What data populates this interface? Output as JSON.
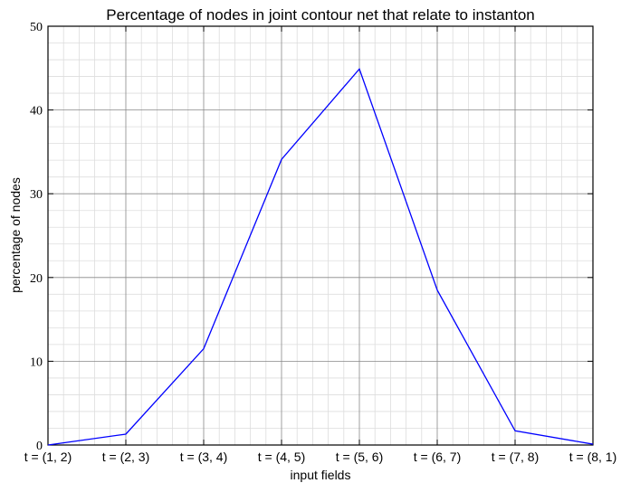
{
  "chart_data": {
    "type": "line",
    "title": "Percentage of nodes in joint contour net that relate to instanton",
    "xlabel": "input fields",
    "ylabel": "percentage of nodes",
    "categories": [
      "t = (1, 2)",
      "t = (2, 3)",
      "t = (3, 4)",
      "t = (4, 5)",
      "t = (5, 6)",
      "t = (6, 7)",
      "t = (7, 8)",
      "t = (8, 1)"
    ],
    "values": [
      0,
      1.3,
      11.5,
      34.1,
      44.9,
      18.5,
      1.7,
      0.1
    ],
    "color": "#0000ff",
    "ylim": [
      0,
      50
    ],
    "yticks": [
      0,
      10,
      20,
      30,
      40,
      50
    ],
    "grid": true
  }
}
